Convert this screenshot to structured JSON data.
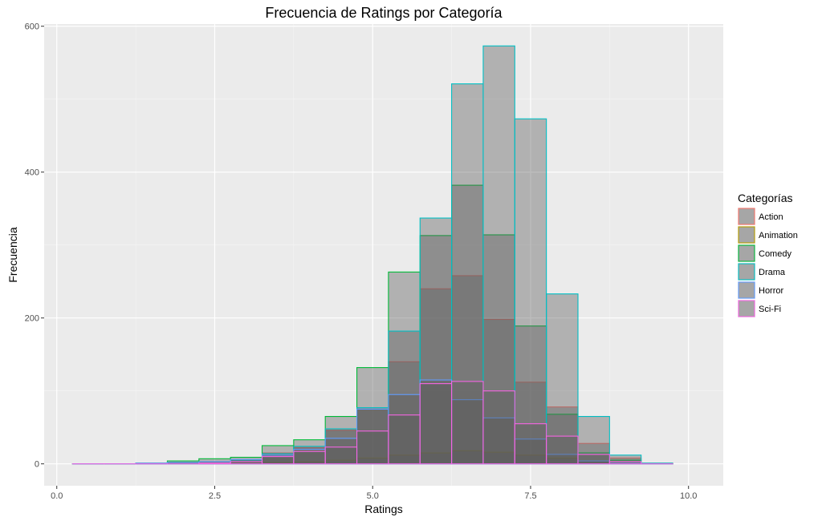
{
  "chart_data": {
    "type": "bar",
    "title": "Frecuencia de Ratings por Categoría",
    "xlabel": "Ratings",
    "ylabel": "Frecuencia",
    "xlim": [
      -0.2,
      10.55
    ],
    "ylim": [
      -30,
      603
    ],
    "x_ticks": [
      0,
      2.5,
      5,
      7.5,
      10
    ],
    "x_tick_labels": [
      "0.0",
      "2.5",
      "5.0",
      "7.5",
      "10.0"
    ],
    "y_ticks": [
      0,
      200,
      400,
      600
    ],
    "y_tick_labels": [
      "0",
      "200",
      "400",
      "600"
    ],
    "grid": true,
    "legend_title": "Categorías",
    "legend_position": "right",
    "bin_width": 0.5,
    "bin_centers": [
      0.5,
      1.0,
      1.5,
      2.0,
      2.5,
      3.0,
      3.5,
      4.0,
      4.5,
      5.0,
      5.5,
      6.0,
      6.5,
      7.0,
      7.5,
      8.0,
      8.5,
      9.0,
      9.5
    ],
    "series": [
      {
        "name": "Action",
        "color": "#F8766D",
        "values": [
          0,
          0,
          1,
          2,
          3,
          5,
          15,
          22,
          46,
          75,
          140,
          240,
          258,
          198,
          112,
          78,
          28,
          8,
          1
        ]
      },
      {
        "name": "Animation",
        "color": "#B79F00",
        "values": [
          0,
          0,
          0,
          0,
          1,
          1,
          2,
          3,
          5,
          8,
          12,
          15,
          18,
          16,
          12,
          8,
          4,
          1,
          0
        ]
      },
      {
        "name": "Comedy",
        "color": "#00BA38",
        "values": [
          0,
          0,
          1,
          4,
          7,
          9,
          25,
          33,
          65,
          132,
          263,
          313,
          382,
          314,
          189,
          68,
          15,
          5,
          0
        ]
      },
      {
        "name": "Drama",
        "color": "#00BFC4",
        "values": [
          0,
          0,
          0,
          2,
          3,
          5,
          14,
          24,
          48,
          77,
          182,
          337,
          521,
          573,
          473,
          233,
          65,
          12,
          1
        ]
      },
      {
        "name": "Horror",
        "color": "#619CFF",
        "values": [
          0,
          0,
          1,
          2,
          3,
          6,
          12,
          20,
          35,
          75,
          95,
          115,
          88,
          63,
          34,
          13,
          4,
          1,
          0
        ]
      },
      {
        "name": "Sci-Fi",
        "color": "#F564E3",
        "values": [
          0,
          0,
          0,
          0,
          1,
          3,
          10,
          17,
          23,
          45,
          67,
          110,
          113,
          100,
          55,
          38,
          13,
          3,
          0
        ]
      }
    ]
  }
}
